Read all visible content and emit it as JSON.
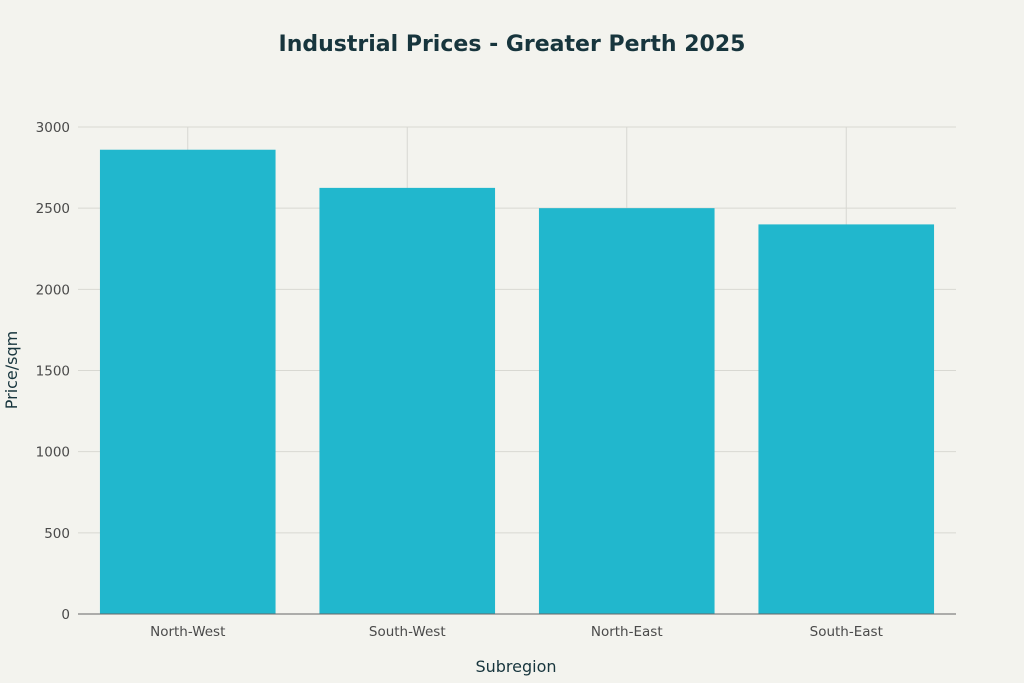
{
  "chart_data": {
    "type": "bar",
    "title": "Industrial Prices - Greater Perth 2025",
    "xlabel": "Subregion",
    "ylabel": "Price/sqm",
    "categories": [
      "North-West",
      "South-West",
      "North-East",
      "South-East"
    ],
    "values": [
      2860,
      2625,
      2500,
      2400
    ],
    "ylim": [
      0,
      3000
    ],
    "yticks": [
      0,
      500,
      1000,
      1500,
      2000,
      2500,
      3000
    ],
    "grid": true,
    "bar_color": "#21b7cd",
    "grid_color": "#d8d8d2",
    "background_color": "#f3f3ee"
  }
}
